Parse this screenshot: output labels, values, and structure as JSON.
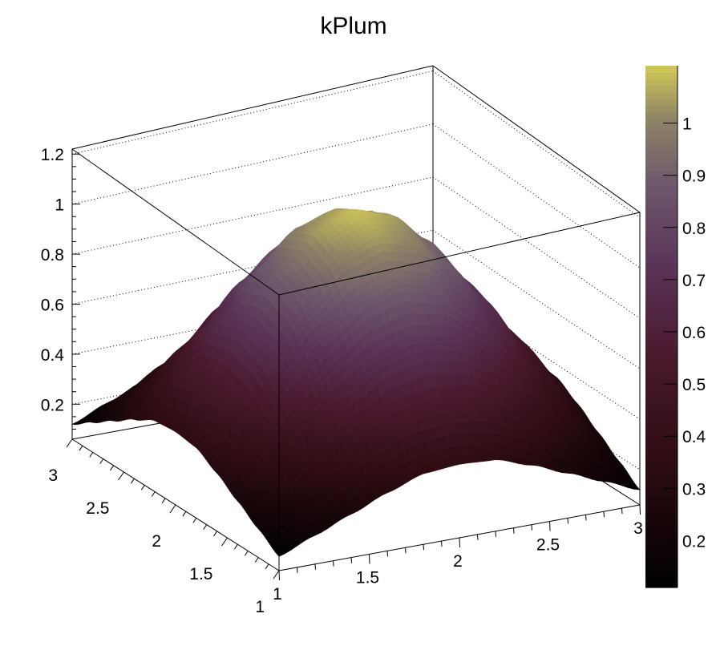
{
  "chart_data": {
    "type": "surface",
    "title": "kPlum",
    "palette": "kPlum",
    "palette_stops": [
      {
        "v": 0.0,
        "color": "#000000"
      },
      {
        "v": 0.25,
        "color": "#2e0d12"
      },
      {
        "v": 0.45,
        "color": "#4a1a2e"
      },
      {
        "v": 0.62,
        "color": "#5a3458"
      },
      {
        "v": 0.78,
        "color": "#6f5a6c"
      },
      {
        "v": 0.9,
        "color": "#8e8466"
      },
      {
        "v": 1.0,
        "color": "#d2c856"
      }
    ],
    "x": [
      1.0,
      1.2,
      1.4,
      1.6,
      1.8,
      2.0,
      2.2,
      2.4,
      2.6,
      2.8,
      3.0
    ],
    "y": [
      1.0,
      1.2,
      1.4,
      1.6,
      1.8,
      2.0,
      2.2,
      2.4,
      2.6,
      2.8,
      3.0
    ],
    "z": [
      [
        0.12,
        0.18,
        0.24,
        0.3,
        0.35,
        0.36,
        0.35,
        0.3,
        0.24,
        0.18,
        0.12
      ],
      [
        0.18,
        0.27,
        0.36,
        0.45,
        0.52,
        0.54,
        0.52,
        0.45,
        0.36,
        0.27,
        0.18
      ],
      [
        0.24,
        0.36,
        0.49,
        0.62,
        0.71,
        0.74,
        0.71,
        0.62,
        0.49,
        0.36,
        0.24
      ],
      [
        0.3,
        0.45,
        0.62,
        0.77,
        0.88,
        0.92,
        0.88,
        0.77,
        0.62,
        0.45,
        0.3
      ],
      [
        0.35,
        0.52,
        0.71,
        0.88,
        1.01,
        1.05,
        1.01,
        0.88,
        0.71,
        0.52,
        0.35
      ],
      [
        0.36,
        0.54,
        0.74,
        0.92,
        1.05,
        1.1,
        1.05,
        0.92,
        0.74,
        0.54,
        0.36
      ],
      [
        0.35,
        0.52,
        0.71,
        0.88,
        1.01,
        1.05,
        1.01,
        0.88,
        0.71,
        0.52,
        0.35
      ],
      [
        0.3,
        0.45,
        0.62,
        0.77,
        0.88,
        0.92,
        0.88,
        0.77,
        0.62,
        0.45,
        0.3
      ],
      [
        0.24,
        0.36,
        0.49,
        0.62,
        0.71,
        0.74,
        0.71,
        0.62,
        0.49,
        0.36,
        0.24
      ],
      [
        0.18,
        0.27,
        0.36,
        0.45,
        0.52,
        0.54,
        0.52,
        0.45,
        0.36,
        0.27,
        0.18
      ],
      [
        0.12,
        0.18,
        0.24,
        0.3,
        0.35,
        0.36,
        0.35,
        0.3,
        0.24,
        0.18,
        0.12
      ]
    ],
    "xlim": [
      1,
      3
    ],
    "ylim": [
      1,
      3
    ],
    "zlim": [
      0.06,
      1.22
    ],
    "color_range": [
      0.11,
      1.11
    ],
    "x_ticks": [
      "1",
      "1.5",
      "2",
      "2.5",
      "3"
    ],
    "y_ticks": [
      "1",
      "1.5",
      "2",
      "2.5",
      "3"
    ],
    "z_ticks": [
      "0.2",
      "0.4",
      "0.6",
      "0.8",
      "1",
      "1.2"
    ],
    "colorbar_ticks": [
      "0.2",
      "0.3",
      "0.4",
      "0.5",
      "0.6",
      "0.7",
      "0.8",
      "0.9",
      "1"
    ],
    "grid": "dotted on back walls at z ticks",
    "legend": "colorbar right"
  }
}
